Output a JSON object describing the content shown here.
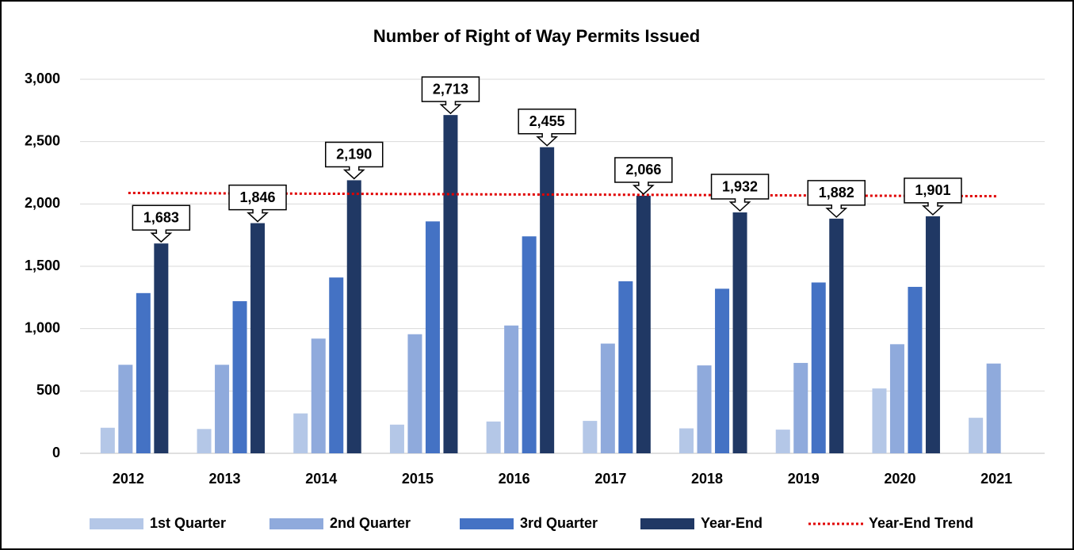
{
  "chart_data": {
    "type": "bar",
    "title": "Number of Right of Way Permits Issued",
    "categories": [
      "2012",
      "2013",
      "2014",
      "2015",
      "2016",
      "2017",
      "2018",
      "2019",
      "2020",
      "2021"
    ],
    "series": [
      {
        "name": "1st Quarter",
        "kind": "bar",
        "color": "#b4c7e7",
        "values": [
          205,
          195,
          320,
          230,
          255,
          260,
          200,
          190,
          520,
          285
        ]
      },
      {
        "name": "2nd Quarter",
        "kind": "bar",
        "color": "#8faadc",
        "values": [
          710,
          710,
          920,
          955,
          1025,
          880,
          705,
          725,
          875,
          720
        ]
      },
      {
        "name": "3rd Quarter",
        "kind": "bar",
        "color": "#4472c4",
        "values": [
          1285,
          1220,
          1410,
          1860,
          1740,
          1380,
          1320,
          1370,
          1335,
          null
        ]
      },
      {
        "name": "Year-End",
        "kind": "bar",
        "color": "#203864",
        "values": [
          1683,
          1846,
          2190,
          2713,
          2455,
          2066,
          1932,
          1882,
          1901,
          null
        ],
        "value_labels": [
          "1,683",
          "1,846",
          "2,190",
          "2,713",
          "2,455",
          "2,066",
          "1,932",
          "1,882",
          "1,901",
          null
        ]
      },
      {
        "name": "Year-End Trend",
        "kind": "line",
        "color": "#e00000",
        "values": [
          2088,
          2085,
          2082,
          2079,
          2076,
          2074,
          2071,
          2068,
          2065,
          2062
        ]
      }
    ],
    "ylim": [
      0,
      3000
    ],
    "yticks": [
      0,
      500,
      {
        "value": 1000,
        "label": "1,000"
      },
      {
        "value": 1500,
        "label": "1,500"
      },
      {
        "value": 2000,
        "label": "2,000"
      },
      {
        "value": 2500,
        "label": "2,500"
      },
      {
        "value": 3000,
        "label": "3,000"
      }
    ],
    "grid": true,
    "legend": "bottom"
  }
}
